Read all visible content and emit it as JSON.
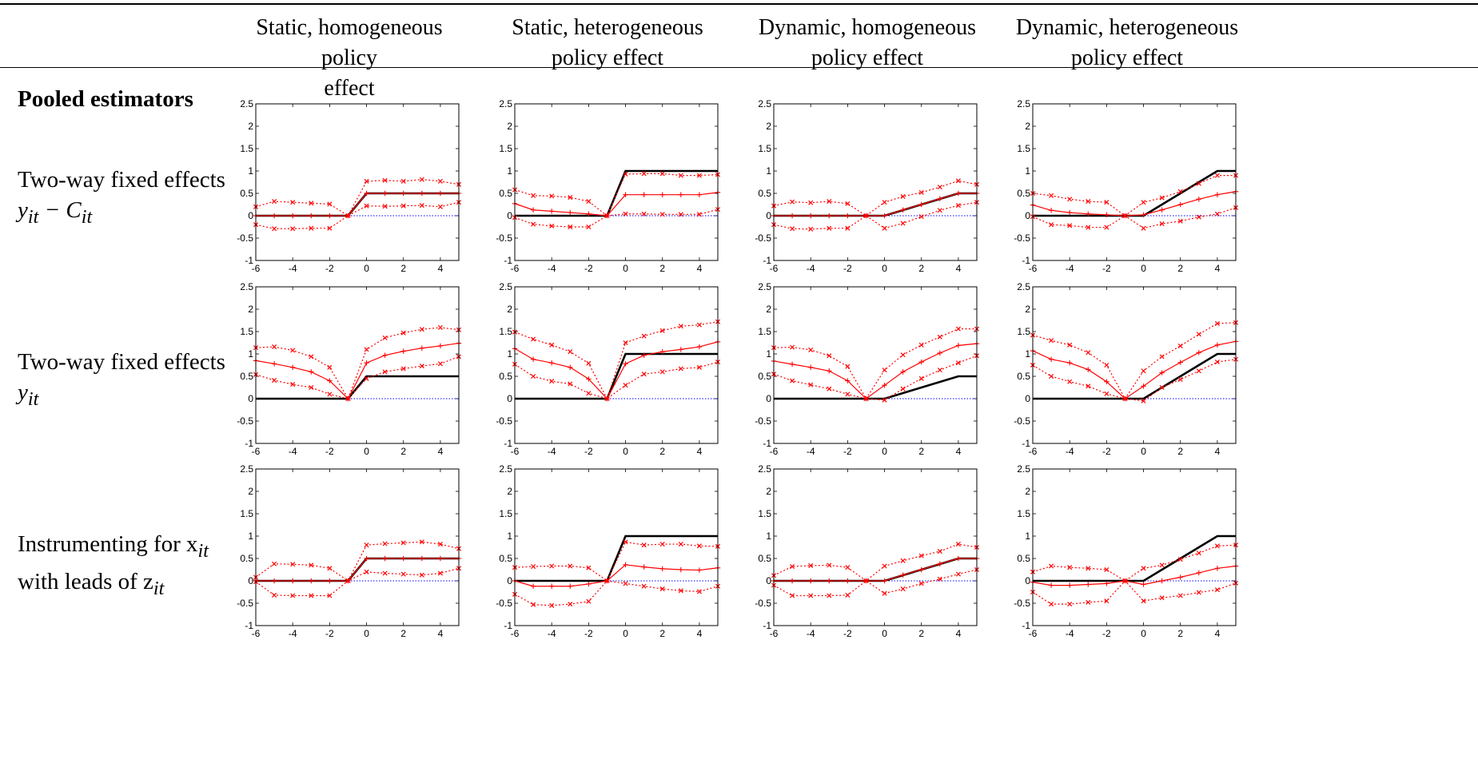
{
  "columns": [
    {
      "line1": "Static, homogeneous policy",
      "line2": "effect"
    },
    {
      "line1": "Static, heterogeneous",
      "line2": "policy effect"
    },
    {
      "line1": "Dynamic, homogeneous",
      "line2": "policy effect"
    },
    {
      "line1": "Dynamic, heterogeneous",
      "line2": "policy effect"
    }
  ],
  "section_title": "Pooled estimators",
  "rows": [
    {
      "line1": "Two-way fixed effects",
      "line2": "y",
      "line2_sub": "it",
      "line2_rest": " − C",
      "line2_rest_sub": "it"
    },
    {
      "line1": "Two-way fixed effects",
      "line2": "y",
      "line2_sub": "it",
      "line2_rest": "",
      "line2_rest_sub": ""
    },
    {
      "line1": "Instrumenting for x",
      "line1_sub": "it",
      "line2": "with leads of z",
      "line2_sub": "it",
      "line2_rest": "",
      "line2_rest_sub": ""
    }
  ],
  "colors": {
    "estimate": "#ff0000",
    "truth": "#000000",
    "zero_line": "#0000ff"
  },
  "chart_data": {
    "type": "line",
    "xlim": [
      -6,
      5
    ],
    "ylim": [
      -1,
      2.5
    ],
    "x": [
      -6,
      -5,
      -4,
      -3,
      -2,
      -1,
      0,
      1,
      2,
      3,
      4,
      5
    ],
    "xticks": [
      -6,
      -4,
      -2,
      0,
      2,
      4
    ],
    "yticks": [
      -1,
      -0.5,
      0,
      0.5,
      1,
      1.5,
      2,
      2.5
    ],
    "zero_reference": 0,
    "panels": [
      {
        "row": 0,
        "col": 0,
        "truth": [
          0,
          0,
          0,
          0,
          0,
          0,
          0.5,
          0.5,
          0.5,
          0.5,
          0.5,
          0.5
        ],
        "estimate": [
          0,
          0,
          0,
          0,
          0,
          0,
          0.5,
          0.5,
          0.5,
          0.5,
          0.5,
          0.5
        ],
        "upper": [
          0.2,
          0.32,
          0.3,
          0.28,
          0.26,
          0,
          0.77,
          0.79,
          0.77,
          0.81,
          0.77,
          0.7
        ],
        "lower": [
          -0.2,
          -0.29,
          -0.29,
          -0.28,
          -0.28,
          0,
          0.22,
          0.21,
          0.22,
          0.23,
          0.2,
          0.3
        ]
      },
      {
        "row": 0,
        "col": 1,
        "truth": [
          0,
          0,
          0,
          0,
          0,
          0,
          1,
          1,
          1,
          1,
          1,
          1
        ],
        "estimate": [
          0.27,
          0.13,
          0.1,
          0.07,
          0.04,
          0,
          0.47,
          0.47,
          0.47,
          0.47,
          0.47,
          0.52
        ],
        "upper": [
          0.58,
          0.45,
          0.44,
          0.41,
          0.32,
          0,
          0.93,
          0.94,
          0.94,
          0.9,
          0.9,
          0.92
        ],
        "lower": [
          -0.04,
          -0.19,
          -0.23,
          -0.25,
          -0.25,
          0,
          0.04,
          0.04,
          0.03,
          0.03,
          0.03,
          0.14
        ]
      },
      {
        "row": 0,
        "col": 2,
        "truth": [
          0,
          0,
          0,
          0,
          0,
          0,
          0,
          0.125,
          0.25,
          0.375,
          0.5,
          0.5
        ],
        "estimate": [
          0,
          0,
          0,
          0,
          0,
          0,
          0,
          0.13,
          0.25,
          0.38,
          0.5,
          0.5
        ],
        "upper": [
          0.22,
          0.31,
          0.29,
          0.32,
          0.27,
          0,
          0.3,
          0.43,
          0.52,
          0.64,
          0.78,
          0.7
        ],
        "lower": [
          -0.2,
          -0.29,
          -0.3,
          -0.28,
          -0.28,
          0,
          -0.28,
          -0.17,
          -0.02,
          0.12,
          0.23,
          0.3
        ]
      },
      {
        "row": 0,
        "col": 3,
        "truth": [
          0,
          0,
          0,
          0,
          0,
          0,
          0,
          0.25,
          0.5,
          0.75,
          1,
          1
        ],
        "estimate": [
          0.24,
          0.12,
          0.07,
          0.04,
          0.02,
          0,
          0.02,
          0.13,
          0.25,
          0.37,
          0.47,
          0.54
        ],
        "upper": [
          0.5,
          0.45,
          0.37,
          0.32,
          0.3,
          0,
          0.3,
          0.4,
          0.54,
          0.72,
          0.9,
          0.9
        ],
        "lower": [
          -0.02,
          -0.2,
          -0.22,
          -0.26,
          -0.26,
          0,
          -0.28,
          -0.18,
          -0.12,
          -0.03,
          0.04,
          0.18
        ]
      },
      {
        "row": 1,
        "col": 0,
        "truth": [
          0,
          0,
          0,
          0,
          0,
          0,
          0.5,
          0.5,
          0.5,
          0.5,
          0.5,
          0.5
        ],
        "estimate": [
          0.85,
          0.78,
          0.7,
          0.6,
          0.4,
          0,
          0.8,
          0.97,
          1.06,
          1.13,
          1.18,
          1.24
        ],
        "upper": [
          1.14,
          1.16,
          1.08,
          0.94,
          0.7,
          0,
          1.1,
          1.36,
          1.47,
          1.55,
          1.59,
          1.54
        ],
        "lower": [
          0.54,
          0.41,
          0.32,
          0.25,
          0.1,
          0,
          0.45,
          0.6,
          0.67,
          0.73,
          0.78,
          0.94
        ]
      },
      {
        "row": 1,
        "col": 1,
        "truth": [
          0,
          0,
          0,
          0,
          0,
          0,
          1,
          1,
          1,
          1,
          1,
          1
        ],
        "estimate": [
          1.12,
          0.88,
          0.8,
          0.7,
          0.44,
          0,
          0.78,
          0.97,
          1.05,
          1.1,
          1.16,
          1.27
        ],
        "upper": [
          1.49,
          1.33,
          1.2,
          1.05,
          0.79,
          0,
          1.25,
          1.4,
          1.52,
          1.62,
          1.65,
          1.72
        ],
        "lower": [
          0.77,
          0.5,
          0.39,
          0.33,
          0.12,
          0,
          0.3,
          0.55,
          0.6,
          0.67,
          0.7,
          0.82
        ]
      },
      {
        "row": 1,
        "col": 2,
        "truth": [
          0,
          0,
          0,
          0,
          0,
          0,
          0,
          0.125,
          0.25,
          0.375,
          0.5,
          0.5
        ],
        "estimate": [
          0.84,
          0.77,
          0.7,
          0.62,
          0.4,
          0,
          0.3,
          0.6,
          0.82,
          1.02,
          1.19,
          1.23
        ],
        "upper": [
          1.14,
          1.15,
          1.09,
          0.96,
          0.72,
          0,
          0.64,
          0.98,
          1.2,
          1.38,
          1.56,
          1.56
        ],
        "lower": [
          0.55,
          0.4,
          0.31,
          0.22,
          0.1,
          0,
          -0.03,
          0.22,
          0.45,
          0.64,
          0.8,
          0.96
        ]
      },
      {
        "row": 1,
        "col": 3,
        "truth": [
          0,
          0,
          0,
          0,
          0,
          0,
          0,
          0.25,
          0.5,
          0.75,
          1,
          1
        ],
        "estimate": [
          1.07,
          0.88,
          0.8,
          0.65,
          0.38,
          0,
          0.28,
          0.58,
          0.81,
          1.03,
          1.2,
          1.28
        ],
        "upper": [
          1.42,
          1.3,
          1.2,
          1.03,
          0.75,
          0,
          0.62,
          0.94,
          1.18,
          1.44,
          1.68,
          1.7
        ],
        "lower": [
          0.75,
          0.5,
          0.38,
          0.28,
          0.11,
          0,
          -0.05,
          0.25,
          0.43,
          0.62,
          0.82,
          0.88
        ]
      },
      {
        "row": 2,
        "col": 0,
        "truth": [
          0,
          0,
          0,
          0,
          0,
          0,
          0.5,
          0.5,
          0.5,
          0.5,
          0.5,
          0.5
        ],
        "estimate": [
          0,
          0,
          0,
          0,
          0,
          0,
          0.5,
          0.5,
          0.5,
          0.5,
          0.5,
          0.5
        ],
        "upper": [
          0.08,
          0.38,
          0.37,
          0.35,
          0.28,
          0,
          0.8,
          0.83,
          0.85,
          0.87,
          0.82,
          0.72
        ],
        "lower": [
          -0.02,
          -0.32,
          -0.33,
          -0.33,
          -0.33,
          0,
          0.2,
          0.17,
          0.15,
          0.13,
          0.17,
          0.28
        ]
      },
      {
        "row": 2,
        "col": 1,
        "truth": [
          0,
          0,
          0,
          0,
          0,
          0,
          1,
          1,
          1,
          1,
          1,
          1
        ],
        "estimate": [
          0,
          -0.12,
          -0.12,
          -0.12,
          -0.07,
          0,
          0.36,
          0.31,
          0.27,
          0.25,
          0.24,
          0.29
        ],
        "upper": [
          0.3,
          0.32,
          0.33,
          0.33,
          0.29,
          0,
          0.87,
          0.8,
          0.82,
          0.82,
          0.78,
          0.77
        ],
        "lower": [
          -0.3,
          -0.53,
          -0.55,
          -0.52,
          -0.46,
          0,
          -0.06,
          -0.12,
          -0.18,
          -0.22,
          -0.24,
          -0.12
        ]
      },
      {
        "row": 2,
        "col": 2,
        "truth": [
          0,
          0,
          0,
          0,
          0,
          0,
          0,
          0.125,
          0.25,
          0.375,
          0.5,
          0.5
        ],
        "estimate": [
          0,
          0,
          0,
          0,
          0,
          0,
          0,
          0.13,
          0.25,
          0.38,
          0.5,
          0.5
        ],
        "upper": [
          0.12,
          0.32,
          0.34,
          0.35,
          0.3,
          0,
          0.33,
          0.45,
          0.56,
          0.66,
          0.82,
          0.75
        ],
        "lower": [
          -0.1,
          -0.33,
          -0.33,
          -0.33,
          -0.32,
          0,
          -0.28,
          -0.18,
          -0.06,
          0.04,
          0.15,
          0.25
        ]
      },
      {
        "row": 2,
        "col": 3,
        "truth": [
          0,
          0,
          0,
          0,
          0,
          0,
          0,
          0.25,
          0.5,
          0.75,
          1,
          1
        ],
        "estimate": [
          -0.03,
          -0.1,
          -0.1,
          -0.08,
          -0.06,
          0,
          -0.08,
          0,
          0.08,
          0.18,
          0.28,
          0.33
        ],
        "upper": [
          0.2,
          0.33,
          0.3,
          0.28,
          0.25,
          0,
          0.28,
          0.35,
          0.48,
          0.62,
          0.78,
          0.8
        ],
        "lower": [
          -0.25,
          -0.52,
          -0.52,
          -0.48,
          -0.45,
          0,
          -0.45,
          -0.38,
          -0.33,
          -0.26,
          -0.2,
          -0.05
        ]
      }
    ]
  }
}
